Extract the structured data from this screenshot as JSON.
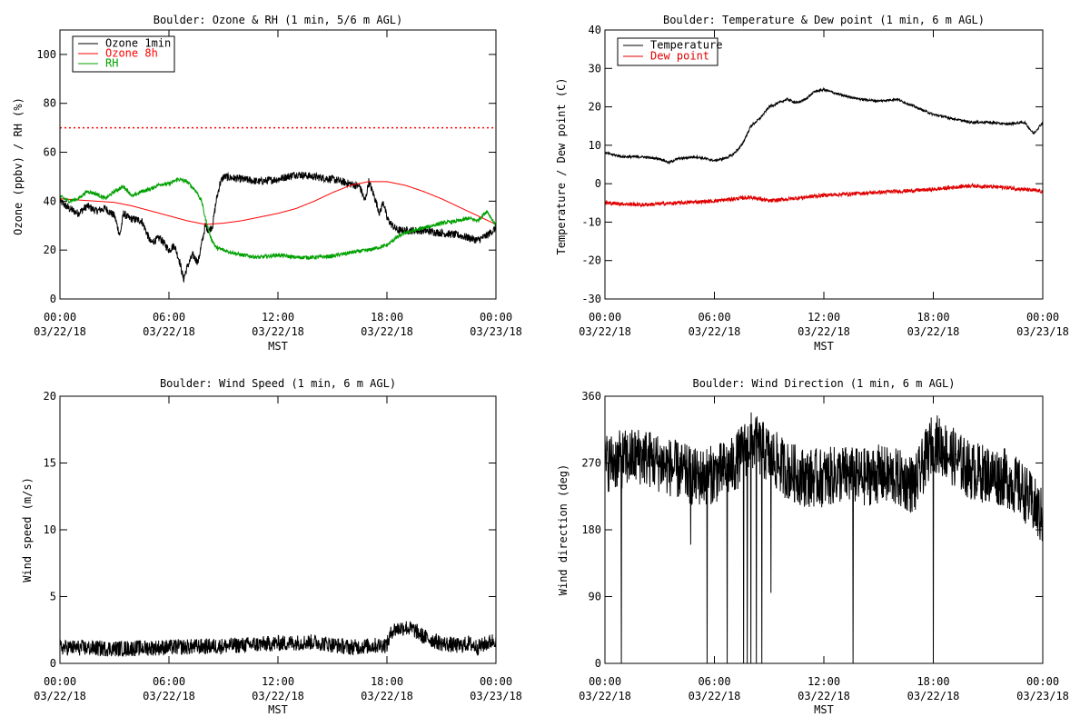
{
  "figure": {
    "x_axis_label": "MST"
  },
  "chart_data": [
    {
      "type": "line",
      "title": "Boulder: Ozone & RH (1 min, 5/6 m AGL)",
      "xlabel": "MST",
      "ylabel": "Ozone (ppbv) / RH (%)",
      "xlim": [
        0,
        24
      ],
      "ylim": [
        0,
        110
      ],
      "y_ticks": [
        0,
        20,
        40,
        60,
        80,
        100
      ],
      "x_ticks": [
        {
          "x": 0,
          "time": "00:00",
          "date": "03/22/18"
        },
        {
          "x": 6,
          "time": "06:00",
          "date": "03/22/18"
        },
        {
          "x": 12,
          "time": "12:00",
          "date": "03/22/18"
        },
        {
          "x": 18,
          "time": "18:00",
          "date": "03/22/18"
        },
        {
          "x": 24,
          "time": "00:00",
          "date": "03/23/18"
        }
      ],
      "reference_line": {
        "y": 70,
        "color": "#ff0000",
        "style": "dotted"
      },
      "legend_position": "top-left",
      "series": [
        {
          "name": "Ozone 1min",
          "color": "#000000",
          "noise": 1.6,
          "x": [
            0,
            0.5,
            1,
            1.5,
            2,
            2.5,
            3,
            3.3,
            3.5,
            3.8,
            4.5,
            5,
            5.5,
            6,
            6.3,
            6.6,
            6.8,
            7,
            7.3,
            7.6,
            8,
            8.2,
            8.4,
            8.6,
            8.8,
            9,
            10,
            11,
            12,
            13,
            14,
            15,
            16,
            16.5,
            16.8,
            17,
            17.3,
            17.6,
            17.8,
            18,
            18.3,
            18.6,
            19,
            20,
            21,
            22,
            23,
            23.5,
            24
          ],
          "y": [
            40,
            37,
            35,
            38,
            36,
            37,
            34,
            26,
            35,
            33,
            32,
            23,
            25,
            20,
            22,
            15,
            8,
            13,
            18,
            15,
            30,
            28,
            30,
            40,
            47,
            50,
            49,
            48,
            49,
            51,
            50,
            49,
            47,
            46,
            40,
            48,
            42,
            35,
            40,
            33,
            30,
            28,
            28,
            28,
            27,
            26,
            24,
            26,
            29
          ]
        },
        {
          "name": "Ozone 8h",
          "color": "#ff0000",
          "noise": 0,
          "x": [
            0,
            1,
            2,
            3,
            4,
            5,
            6,
            7,
            8,
            9,
            10,
            11,
            12,
            13,
            14,
            15,
            16,
            17,
            18,
            19,
            20,
            21,
            22,
            23,
            24
          ],
          "y": [
            41,
            40.5,
            40,
            39.5,
            38,
            36,
            34,
            32,
            30.5,
            31,
            32,
            33.5,
            35,
            37,
            40,
            43.5,
            46.5,
            48,
            48,
            46.5,
            44,
            41,
            37.5,
            34,
            30.5
          ]
        },
        {
          "name": "RH",
          "color": "#00a000",
          "noise": 0.8,
          "x": [
            0,
            0.5,
            1,
            1.5,
            2,
            2.5,
            3,
            3.5,
            4,
            4.5,
            5,
            5.5,
            6,
            6.5,
            7,
            7.5,
            7.8,
            8,
            8.3,
            8.6,
            9,
            10,
            11,
            12,
            13,
            14,
            15,
            16,
            17,
            18,
            18.5,
            19,
            20,
            21,
            22,
            22.5,
            23,
            23.5,
            24
          ],
          "y": [
            42,
            40,
            41,
            44,
            43,
            41,
            44,
            46,
            42,
            44,
            45,
            47,
            47,
            49,
            48,
            44,
            40,
            33,
            25,
            21,
            20,
            18,
            17,
            18,
            17,
            17,
            17.5,
            19,
            20,
            22,
            25,
            27,
            29,
            31,
            32,
            33,
            32,
            36,
            30
          ]
        }
      ]
    },
    {
      "type": "line",
      "title": "Boulder: Temperature & Dew point (1 min, 6 m AGL)",
      "xlabel": "MST",
      "ylabel": "Temperature / Dew point (C)",
      "xlim": [
        0,
        24
      ],
      "ylim": [
        -30,
        40
      ],
      "y_ticks": [
        -30,
        -20,
        -10,
        0,
        10,
        20,
        30,
        40
      ],
      "x_ticks": [
        {
          "x": 0,
          "time": "00:00",
          "date": "03/22/18"
        },
        {
          "x": 6,
          "time": "06:00",
          "date": "03/22/18"
        },
        {
          "x": 12,
          "time": "12:00",
          "date": "03/22/18"
        },
        {
          "x": 18,
          "time": "18:00",
          "date": "03/22/18"
        },
        {
          "x": 24,
          "time": "00:00",
          "date": "03/23/18"
        }
      ],
      "legend_position": "top-left",
      "series": [
        {
          "name": "Temperature",
          "color": "#000000",
          "noise": 0.3,
          "x": [
            0,
            1,
            2,
            3,
            3.5,
            4,
            5,
            6,
            6.5,
            7,
            7.5,
            8,
            8.5,
            9,
            10,
            10.5,
            11,
            11.5,
            12,
            13,
            14,
            15,
            16,
            17,
            18,
            19,
            20,
            21,
            22,
            23,
            23.5,
            24
          ],
          "y": [
            8,
            7,
            7,
            6.5,
            5.5,
            6.5,
            7,
            6,
            6.5,
            7.5,
            10,
            15,
            17,
            20,
            22,
            21,
            22,
            24,
            24.5,
            23,
            22,
            21.5,
            22,
            20,
            18,
            17,
            16,
            16,
            15.5,
            16,
            13,
            16
          ]
        },
        {
          "name": "Dew point",
          "color": "#e00000",
          "noise": 0.5,
          "x": [
            0,
            2,
            4,
            6,
            8,
            9,
            10,
            12,
            14,
            16,
            18,
            20,
            22,
            23,
            24
          ],
          "y": [
            -5,
            -5.5,
            -5,
            -4.5,
            -3.5,
            -4.5,
            -4,
            -3,
            -2.5,
            -2,
            -1.5,
            -0.5,
            -1,
            -1.5,
            -2
          ]
        }
      ]
    },
    {
      "type": "line",
      "title": "Boulder: Wind Speed (1 min, 6 m AGL)",
      "xlabel": "MST",
      "ylabel": "Wind speed (m/s)",
      "xlim": [
        0,
        24
      ],
      "ylim": [
        0,
        20
      ],
      "y_ticks": [
        0,
        5,
        10,
        15,
        20
      ],
      "x_ticks": [
        {
          "x": 0,
          "time": "00:00",
          "date": "03/22/18"
        },
        {
          "x": 6,
          "time": "06:00",
          "date": "03/22/18"
        },
        {
          "x": 12,
          "time": "12:00",
          "date": "03/22/18"
        },
        {
          "x": 18,
          "time": "18:00",
          "date": "03/22/18"
        },
        {
          "x": 24,
          "time": "00:00",
          "date": "03/23/18"
        }
      ],
      "series": [
        {
          "name": "",
          "color": "#000000",
          "noise": 0.6,
          "x": [
            0,
            3,
            6,
            9,
            12,
            14,
            16,
            18,
            18.3,
            19,
            19.5,
            20,
            21,
            22,
            22.5,
            23,
            24
          ],
          "y": [
            1.2,
            1.1,
            1.2,
            1.3,
            1.5,
            1.6,
            1.2,
            1.4,
            2.5,
            2.7,
            2.5,
            2,
            1.5,
            1.3,
            1.5,
            1.2,
            1.8
          ]
        }
      ]
    },
    {
      "type": "line",
      "title": "Boulder: Wind Direction (1 min, 6 m AGL)",
      "xlabel": "MST",
      "ylabel": "Wind direction (deg)",
      "xlim": [
        0,
        24
      ],
      "ylim": [
        0,
        360
      ],
      "y_ticks": [
        0,
        90,
        180,
        270,
        360
      ],
      "x_ticks": [
        {
          "x": 0,
          "time": "00:00",
          "date": "03/22/18"
        },
        {
          "x": 6,
          "time": "06:00",
          "date": "03/22/18"
        },
        {
          "x": 12,
          "time": "12:00",
          "date": "03/22/18"
        },
        {
          "x": 18,
          "time": "18:00",
          "date": "03/22/18"
        },
        {
          "x": 24,
          "time": "00:00",
          "date": "03/23/18"
        }
      ],
      "series": [
        {
          "name": "",
          "color": "#000000",
          "noise": 40,
          "x": [
            0,
            1,
            2,
            3,
            4,
            5,
            6,
            7,
            8,
            9,
            10,
            11,
            12,
            13,
            14,
            15,
            16,
            17,
            18,
            19,
            20,
            21,
            22,
            23,
            24
          ],
          "y": [
            270,
            275,
            280,
            270,
            260,
            250,
            255,
            265,
            300,
            280,
            260,
            250,
            250,
            255,
            250,
            255,
            250,
            240,
            300,
            280,
            260,
            255,
            250,
            230,
            195
          ],
          "spikes": [
            {
              "x": 0.9,
              "y": 0
            },
            {
              "x": 4.7,
              "y": 160
            },
            {
              "x": 5.6,
              "y": 0
            },
            {
              "x": 6.7,
              "y": 0
            },
            {
              "x": 7.6,
              "y": 0
            },
            {
              "x": 7.8,
              "y": 0
            },
            {
              "x": 8.0,
              "y": 0
            },
            {
              "x": 8.3,
              "y": 0
            },
            {
              "x": 8.6,
              "y": 0
            },
            {
              "x": 9.1,
              "y": 95
            },
            {
              "x": 13.6,
              "y": 0
            },
            {
              "x": 18.0,
              "y": 0
            }
          ]
        }
      ]
    }
  ]
}
